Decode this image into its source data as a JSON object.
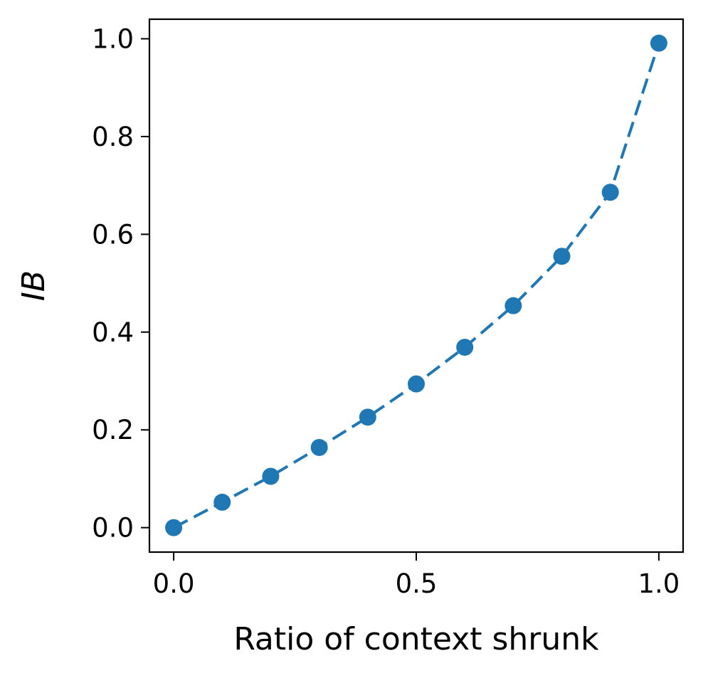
{
  "chart_data": {
    "type": "line",
    "title": "",
    "xlabel": "Ratio of context shrunk",
    "ylabel": "IB",
    "xlim": [
      -0.05,
      1.05
    ],
    "ylim": [
      -0.05,
      1.04
    ],
    "x_ticks": [
      0.0,
      0.5,
      1.0
    ],
    "x_tick_labels": [
      "0.0",
      "0.5",
      "1.0"
    ],
    "y_ticks": [
      0.0,
      0.2,
      0.4,
      0.6,
      0.8,
      1.0
    ],
    "y_tick_labels": [
      "0.0",
      "0.2",
      "0.4",
      "0.6",
      "0.8",
      "1.0"
    ],
    "grid": false,
    "legend": "none",
    "series": [
      {
        "line_style": "dashed",
        "marker": "circle",
        "color": "#1f77b4",
        "x": [
          0.0,
          0.1,
          0.2,
          0.3,
          0.4,
          0.5,
          0.6,
          0.7,
          0.8,
          0.9,
          1.0
        ],
        "y": [
          0.0,
          0.052,
          0.105,
          0.164,
          0.226,
          0.294,
          0.369,
          0.454,
          0.555,
          0.686,
          0.991
        ]
      }
    ]
  }
}
